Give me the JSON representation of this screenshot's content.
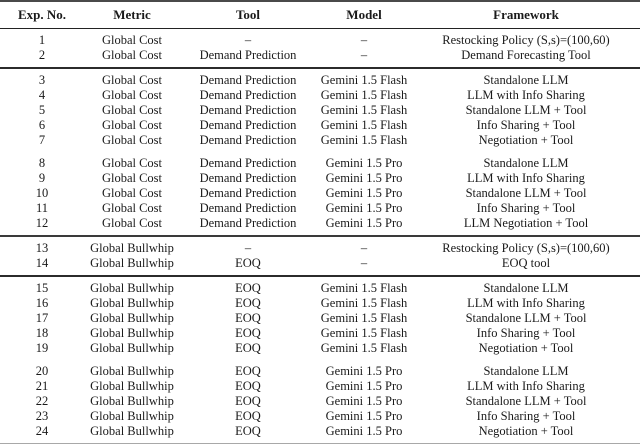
{
  "table": {
    "columns": [
      "Exp. No.",
      "Metric",
      "Tool",
      "Model",
      "Framework"
    ],
    "column_keys": [
      "exp-no",
      "metric",
      "tool",
      "model",
      "framework"
    ],
    "colors": {
      "background": "#ffffff",
      "text": "#1a1a1a",
      "rule_dark": "#2b2b2b",
      "rule_medium": "#4a4a4a",
      "rule_light": "#a8a8a8"
    },
    "groups": [
      {
        "name": "global-cost-baselines",
        "separator_after": "rule",
        "rows": [
          [
            "1",
            "Global Cost",
            "–",
            "–",
            "Restocking Policy (S,s)=(100,60)"
          ],
          [
            "2",
            "Global Cost",
            "Demand Prediction",
            "–",
            "Demand Forecasting Tool"
          ]
        ]
      },
      {
        "name": "global-cost-gemini-flash",
        "separator_after": "gap",
        "rows": [
          [
            "3",
            "Global Cost",
            "Demand Prediction",
            "Gemini 1.5 Flash",
            "Standalone LLM"
          ],
          [
            "4",
            "Global Cost",
            "Demand Prediction",
            "Gemini 1.5 Flash",
            "LLM with Info Sharing"
          ],
          [
            "5",
            "Global Cost",
            "Demand Prediction",
            "Gemini 1.5 Flash",
            "Standalone LLM + Tool"
          ],
          [
            "6",
            "Global Cost",
            "Demand Prediction",
            "Gemini 1.5 Flash",
            "Info Sharing + Tool"
          ],
          [
            "7",
            "Global Cost",
            "Demand Prediction",
            "Gemini 1.5 Flash",
            "Negotiation + Tool"
          ]
        ]
      },
      {
        "name": "global-cost-gemini-pro",
        "separator_after": "thick-rule",
        "rows": [
          [
            "8",
            "Global Cost",
            "Demand Prediction",
            "Gemini 1.5 Pro",
            "Standalone LLM"
          ],
          [
            "9",
            "Global Cost",
            "Demand Prediction",
            "Gemini 1.5 Pro",
            "LLM with Info Sharing"
          ],
          [
            "10",
            "Global Cost",
            "Demand Prediction",
            "Gemini 1.5 Pro",
            "Standalone LLM + Tool"
          ],
          [
            "11",
            "Global Cost",
            "Demand Prediction",
            "Gemini 1.5 Pro",
            "Info Sharing + Tool"
          ],
          [
            "12",
            "Global Cost",
            "Demand Prediction",
            "Gemini 1.5 Pro",
            "LLM Negotiation + Tool"
          ]
        ]
      },
      {
        "name": "global-bullwhip-baselines",
        "separator_after": "rule",
        "rows": [
          [
            "13",
            "Global Bullwhip",
            "–",
            "–",
            "Restocking Policy (S,s)=(100,60)"
          ],
          [
            "14",
            "Global Bullwhip",
            "EOQ",
            "–",
            "EOQ tool"
          ]
        ]
      },
      {
        "name": "global-bullwhip-gemini-flash",
        "separator_after": "gap",
        "rows": [
          [
            "15",
            "Global Bullwhip",
            "EOQ",
            "Gemini 1.5 Flash",
            "Standalone LLM"
          ],
          [
            "16",
            "Global Bullwhip",
            "EOQ",
            "Gemini 1.5 Flash",
            "LLM with Info Sharing"
          ],
          [
            "17",
            "Global Bullwhip",
            "EOQ",
            "Gemini 1.5 Flash",
            "Standalone LLM + Tool"
          ],
          [
            "18",
            "Global Bullwhip",
            "EOQ",
            "Gemini 1.5 Flash",
            "Info Sharing + Tool"
          ],
          [
            "19",
            "Global Bullwhip",
            "EOQ",
            "Gemini 1.5 Flash",
            "Negotiation + Tool"
          ]
        ]
      },
      {
        "name": "global-bullwhip-gemini-pro",
        "separator_after": "none",
        "rows": [
          [
            "20",
            "Global Bullwhip",
            "EOQ",
            "Gemini 1.5 Pro",
            "Standalone LLM"
          ],
          [
            "21",
            "Global Bullwhip",
            "EOQ",
            "Gemini 1.5 Pro",
            "LLM with Info Sharing"
          ],
          [
            "22",
            "Global Bullwhip",
            "EOQ",
            "Gemini 1.5 Pro",
            "Standalone LLM + Tool"
          ],
          [
            "23",
            "Global Bullwhip",
            "EOQ",
            "Gemini 1.5 Pro",
            "Info Sharing + Tool"
          ],
          [
            "24",
            "Global Bullwhip",
            "EOQ",
            "Gemini 1.5 Pro",
            "Negotiation + Tool"
          ]
        ]
      }
    ]
  }
}
